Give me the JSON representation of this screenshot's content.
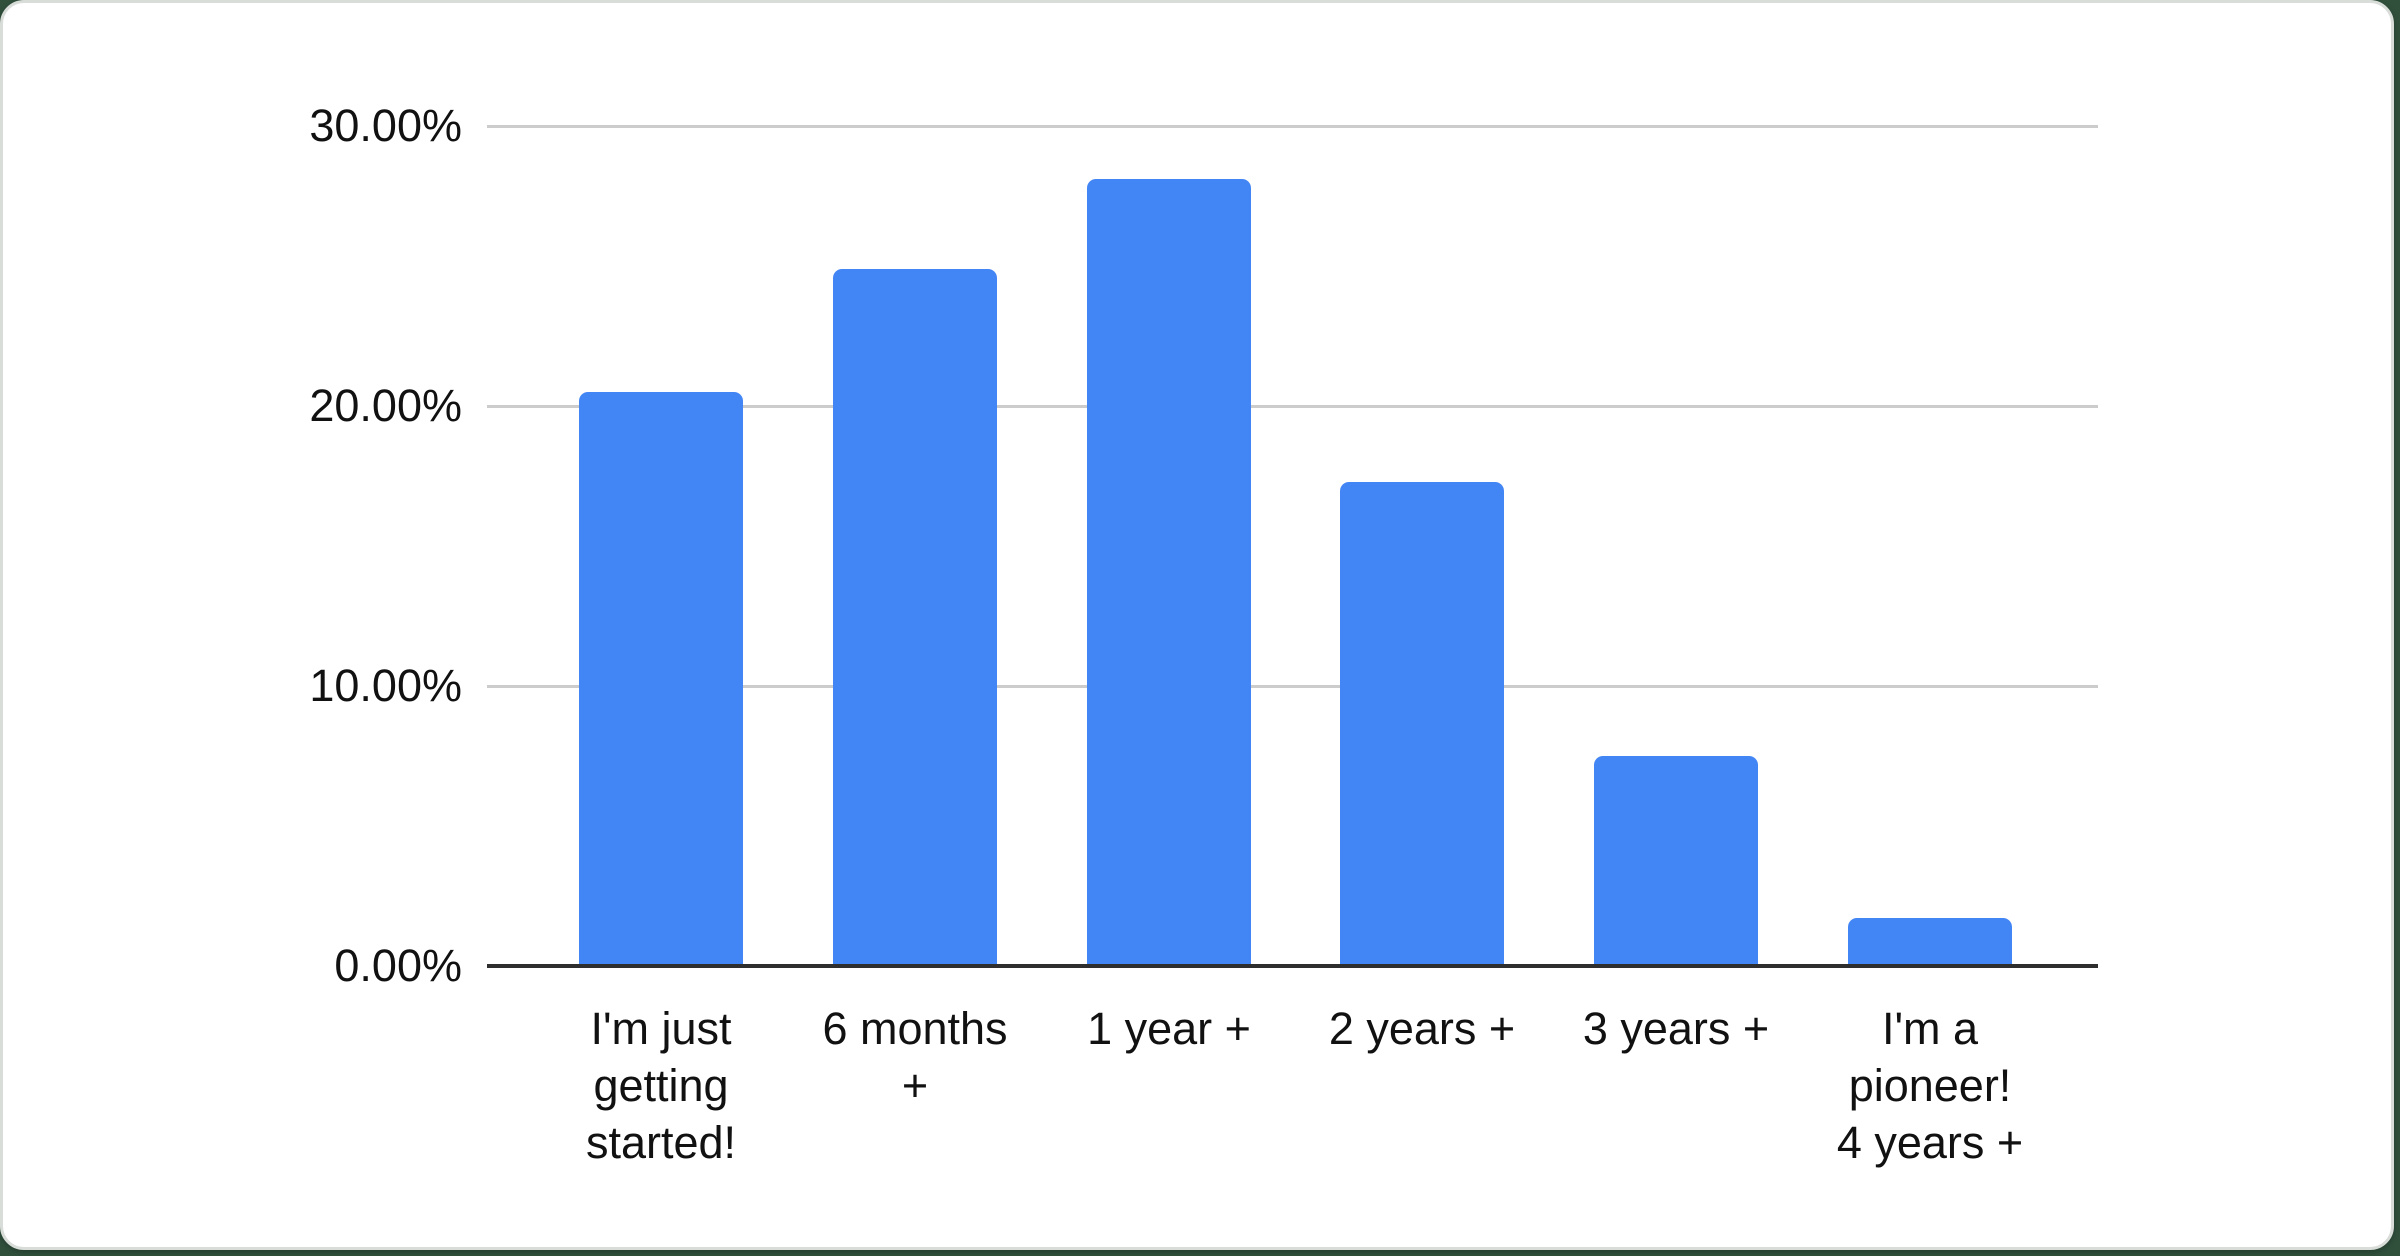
{
  "page": {
    "background_color": "#30503c",
    "card_background": "#ffffff",
    "card_border_color": "#d9ddd9"
  },
  "chart_data": {
    "type": "bar",
    "title": "",
    "categories": [
      "I'm just getting started!",
      "6 months +",
      "1 year +",
      "2 years +",
      "3 years +",
      "I'm a pioneer! 4 years +"
    ],
    "category_display_lines": [
      [
        "I'm just",
        "getting",
        "started!"
      ],
      [
        "6 months",
        "+"
      ],
      [
        "1 year +"
      ],
      [
        "2 years +"
      ],
      [
        "3 years +"
      ],
      [
        "I'm a",
        "pioneer!",
        "4 years +"
      ]
    ],
    "values": [
      20.5,
      24.9,
      28.1,
      17.3,
      7.5,
      1.7
    ],
    "value_unit": "%",
    "y_ticks": [
      {
        "value": 0,
        "label": "0.00%"
      },
      {
        "value": 10,
        "label": "10.00%"
      },
      {
        "value": 20,
        "label": "20.00%"
      },
      {
        "value": 30,
        "label": "30.00%"
      }
    ],
    "ylim": [
      0,
      30
    ],
    "xlabel": "",
    "ylabel": "",
    "grid": true,
    "legend": "none",
    "bar_color": "#4285f4",
    "gridline_color": "#cccccc",
    "axis_line_color": "#2e2e2e",
    "label_color": "#111111"
  }
}
